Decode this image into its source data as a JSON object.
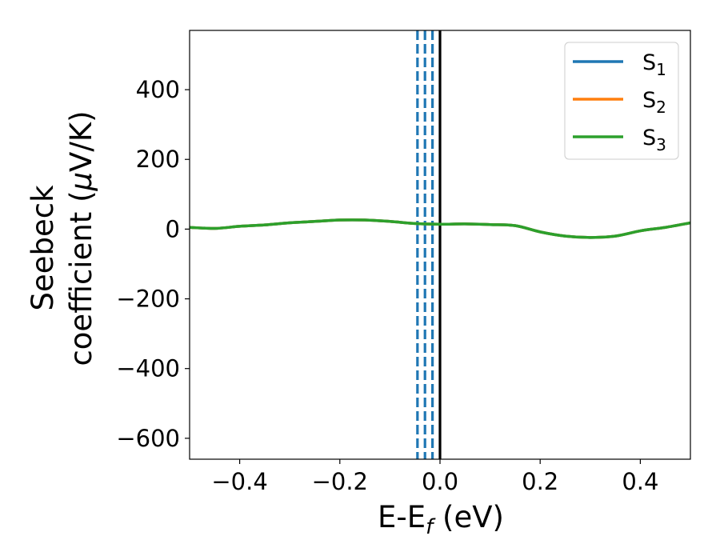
{
  "chart_data": {
    "type": "line",
    "xlabel_parts": [
      "E-E",
      "f",
      " (eV)"
    ],
    "ylabel_lines": [
      "Seebeck",
      "coefficient  (",
      "μ",
      "V/K)"
    ],
    "xlim": [
      -0.5,
      0.5
    ],
    "ylim": [
      -660,
      570
    ],
    "xticks": [
      -0.4,
      -0.2,
      0.0,
      0.2,
      0.4
    ],
    "xtick_labels": [
      "−0.4",
      "−0.2",
      "0.0",
      "0.2",
      "0.4"
    ],
    "yticks": [
      -600,
      -400,
      -200,
      0,
      200,
      400
    ],
    "ytick_labels": [
      "−600",
      "−400",
      "−200",
      "0",
      "200",
      "400"
    ],
    "grid": false,
    "legend_position": "top-right",
    "series": [
      {
        "name": "S",
        "subscript": "1",
        "color": "#1f77b4",
        "x": [
          -0.5,
          -0.45,
          -0.4,
          -0.35,
          -0.3,
          -0.25,
          -0.2,
          -0.15,
          -0.1,
          -0.05,
          0.0,
          0.05,
          0.1,
          0.15,
          0.2,
          0.25,
          0.3,
          0.35,
          0.4,
          0.45,
          0.5
        ],
        "y": [
          5,
          2,
          8,
          12,
          18,
          22,
          26,
          26,
          22,
          16,
          14,
          15,
          13,
          10,
          -8,
          -20,
          -24,
          -20,
          -5,
          5,
          18
        ]
      },
      {
        "name": "S",
        "subscript": "2",
        "color": "#ff7f0e",
        "x": [
          -0.5,
          -0.45,
          -0.4,
          -0.35,
          -0.3,
          -0.25,
          -0.2,
          -0.15,
          -0.1,
          -0.05,
          0.0,
          0.05,
          0.1,
          0.15,
          0.2,
          0.25,
          0.3,
          0.35,
          0.4,
          0.45,
          0.5
        ],
        "y": [
          5,
          2,
          8,
          12,
          18,
          22,
          26,
          26,
          22,
          16,
          14,
          15,
          13,
          10,
          -8,
          -20,
          -24,
          -20,
          -5,
          5,
          18
        ]
      },
      {
        "name": "S",
        "subscript": "3",
        "color": "#2ca02c",
        "x": [
          -0.5,
          -0.45,
          -0.4,
          -0.35,
          -0.3,
          -0.25,
          -0.2,
          -0.15,
          -0.1,
          -0.05,
          0.0,
          0.05,
          0.1,
          0.15,
          0.2,
          0.25,
          0.3,
          0.35,
          0.4,
          0.45,
          0.5
        ],
        "y": [
          5,
          2,
          8,
          12,
          18,
          22,
          26,
          26,
          22,
          16,
          14,
          15,
          13,
          10,
          -8,
          -20,
          -24,
          -20,
          -5,
          5,
          18
        ]
      }
    ],
    "vertical_lines": [
      {
        "x": -0.045,
        "style": "dashed",
        "color": "#1f77b4"
      },
      {
        "x": -0.03,
        "style": "dashed",
        "color": "#1f77b4"
      },
      {
        "x": -0.015,
        "style": "dashed",
        "color": "#1f77b4"
      },
      {
        "x": 0.0,
        "style": "solid",
        "color": "#000000"
      }
    ]
  }
}
